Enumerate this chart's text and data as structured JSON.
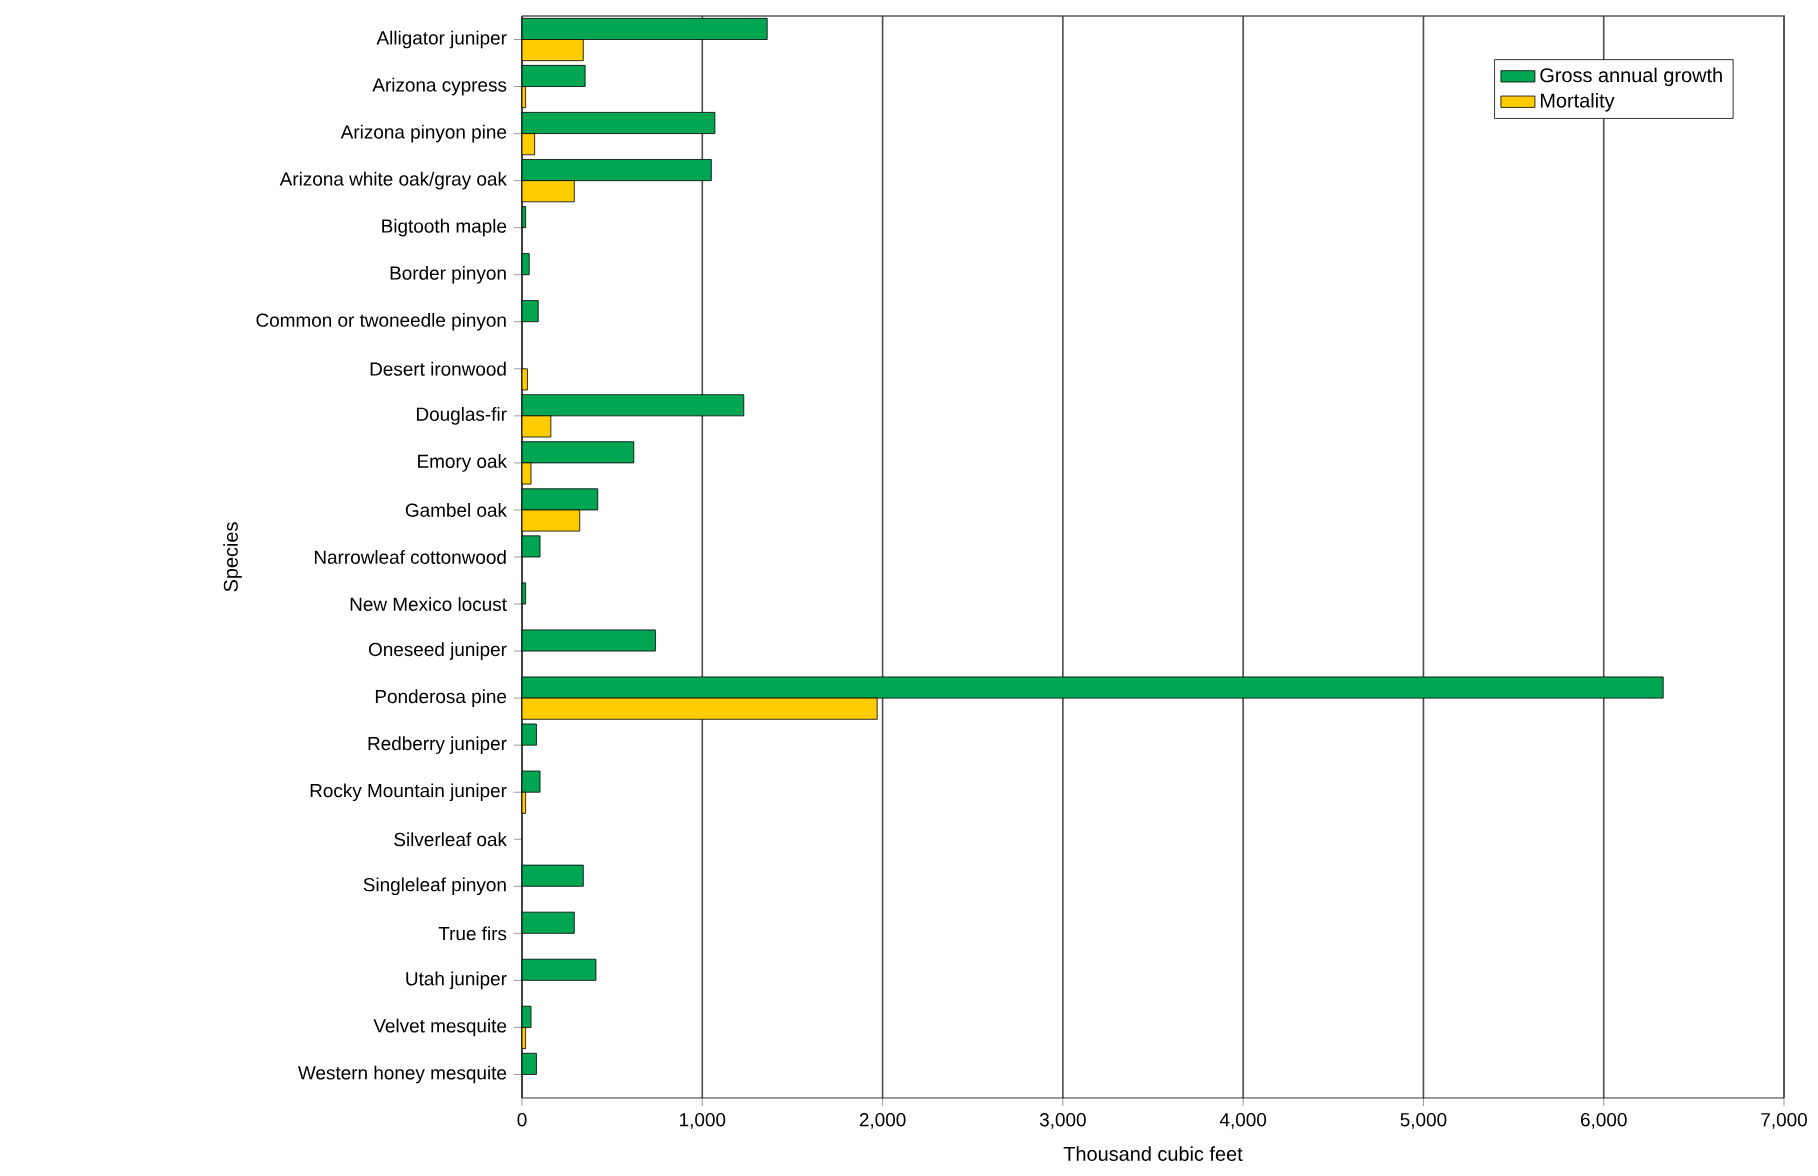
{
  "chart_data": {
    "type": "bar",
    "orientation": "horizontal",
    "xlabel": "Thousand cubic feet",
    "ylabel": "Species",
    "categories": [
      "Alligator juniper",
      "Arizona cypress",
      "Arizona pinyon pine",
      "Arizona white oak/gray oak",
      "Bigtooth maple",
      "Border pinyon",
      "Common or twoneedle pinyon",
      "Desert ironwood",
      "Douglas-fir",
      "Emory oak",
      "Gambel oak",
      "Narrowleaf cottonwood",
      "New Mexico locust",
      "Oneseed juniper",
      "Ponderosa pine",
      "Redberry juniper",
      "Rocky Mountain juniper",
      "Silverleaf oak",
      "Singleleaf pinyon",
      "True firs",
      "Utah juniper",
      "Velvet mesquite",
      "Western honey mesquite"
    ],
    "series": [
      {
        "name": "Gross annual growth",
        "color": "#00a651",
        "values": [
          1360,
          350,
          1070,
          1050,
          20,
          40,
          90,
          null,
          1230,
          620,
          420,
          100,
          20,
          740,
          6330,
          80,
          100,
          null,
          340,
          290,
          410,
          50,
          80
        ]
      },
      {
        "name": "Mortality",
        "color": "#ffcc00",
        "values": [
          340,
          20,
          70,
          290,
          null,
          null,
          null,
          30,
          160,
          50,
          320,
          null,
          null,
          null,
          1970,
          null,
          20,
          null,
          null,
          null,
          null,
          20,
          null
        ]
      }
    ],
    "xlim": [
      0,
      7000
    ],
    "xticks": [
      {
        "value": 0,
        "label": "0"
      },
      {
        "value": 1000,
        "label": "1,000"
      },
      {
        "value": 2000,
        "label": "2,000"
      },
      {
        "value": 3000,
        "label": "3,000"
      },
      {
        "value": 4000,
        "label": "4,000"
      },
      {
        "value": 5000,
        "label": "5,000"
      },
      {
        "value": 6000,
        "label": "6,000"
      },
      {
        "value": 7000,
        "label": "7,000"
      }
    ],
    "grid": "x",
    "legend": "top right"
  }
}
